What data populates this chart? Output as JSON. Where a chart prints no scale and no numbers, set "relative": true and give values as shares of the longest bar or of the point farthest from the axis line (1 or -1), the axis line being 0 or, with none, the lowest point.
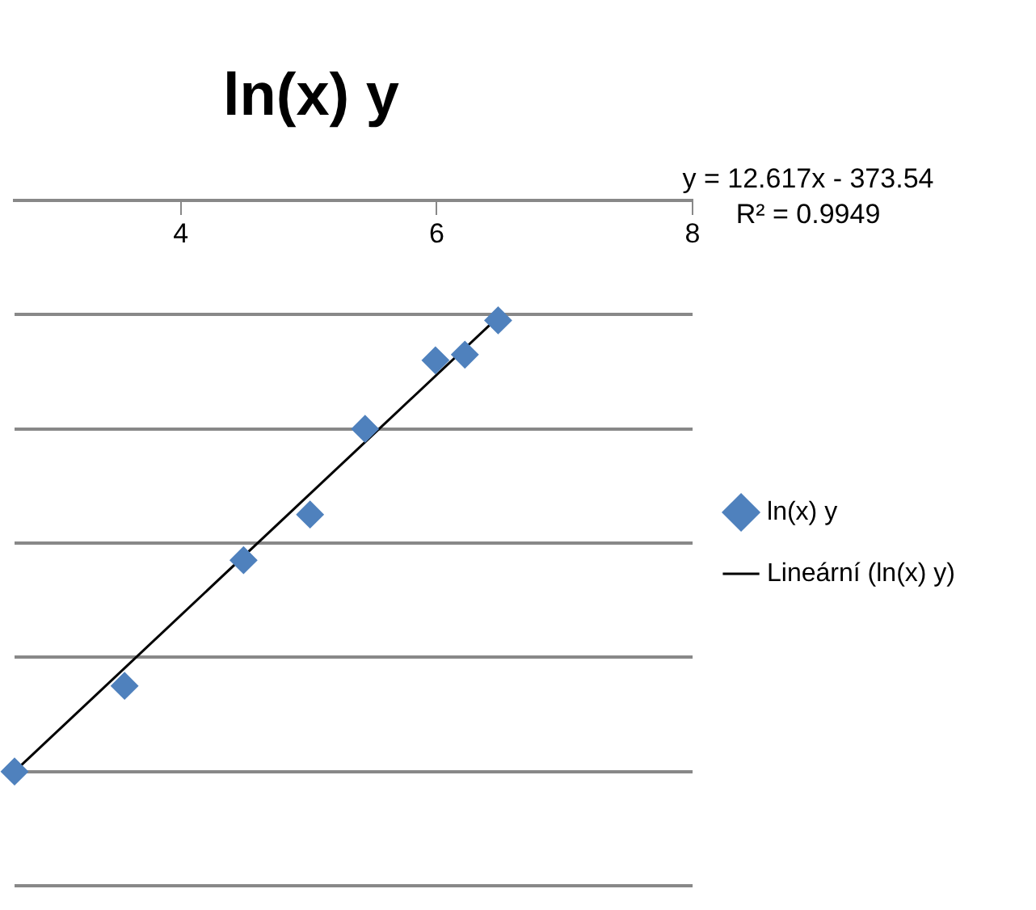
{
  "chart_data": {
    "type": "scatter",
    "title": "ln(x) y",
    "relative": true,
    "xlim": [
      2.7,
      8
    ],
    "xticks": [
      4,
      6,
      8
    ],
    "series": [
      {
        "name": "ln(x) y",
        "type": "scatter",
        "color": "#4f81bd",
        "marker": "diamond",
        "x": [
          2.7,
          3.56,
          4.49,
          5.01,
          5.44,
          5.99,
          6.22,
          6.48
        ],
        "values": [
          -1,
          -0.85,
          -0.63,
          -0.55,
          -0.4,
          -0.28,
          -0.27,
          -0.21
        ]
      },
      {
        "name": "Lineární (ln(x) y)",
        "type": "line",
        "color": "#000000",
        "marker": "none",
        "line_style": "solid",
        "x": [
          2.7,
          6.5
        ],
        "values": [
          -1,
          -0.2
        ]
      }
    ],
    "annotations": [
      "y = 12.617x - 373.54",
      "R² = 0.9949"
    ],
    "grid": "y",
    "legend": "right"
  }
}
